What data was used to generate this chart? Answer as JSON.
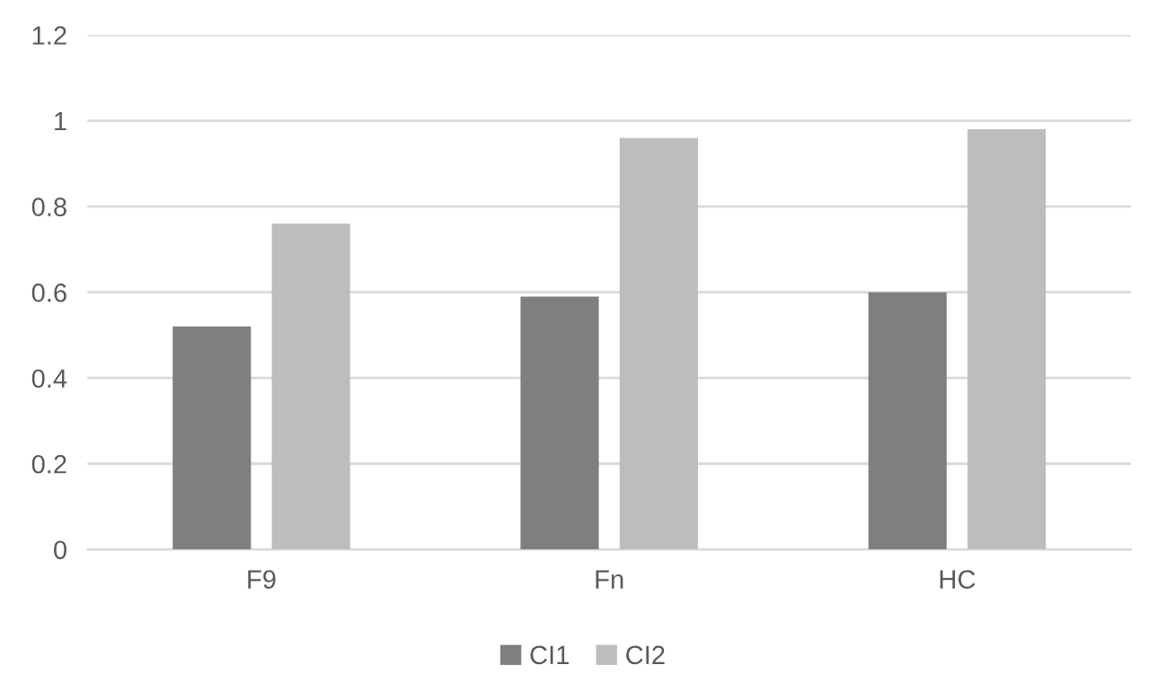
{
  "chart_data": {
    "type": "bar",
    "categories": [
      "F9",
      "Fn",
      "HC"
    ],
    "series": [
      {
        "name": "CI1",
        "color": "#7f7f80",
        "values": [
          0.52,
          0.59,
          0.6
        ]
      },
      {
        "name": "CI2",
        "color": "#bcbdbf",
        "values": [
          0.76,
          0.96,
          0.98
        ]
      }
    ],
    "ylim": [
      0,
      1.2
    ],
    "yticks": [
      0,
      0.2,
      0.4,
      0.6,
      0.8,
      1,
      1.2
    ],
    "grid": "y",
    "legend": "bottom"
  }
}
